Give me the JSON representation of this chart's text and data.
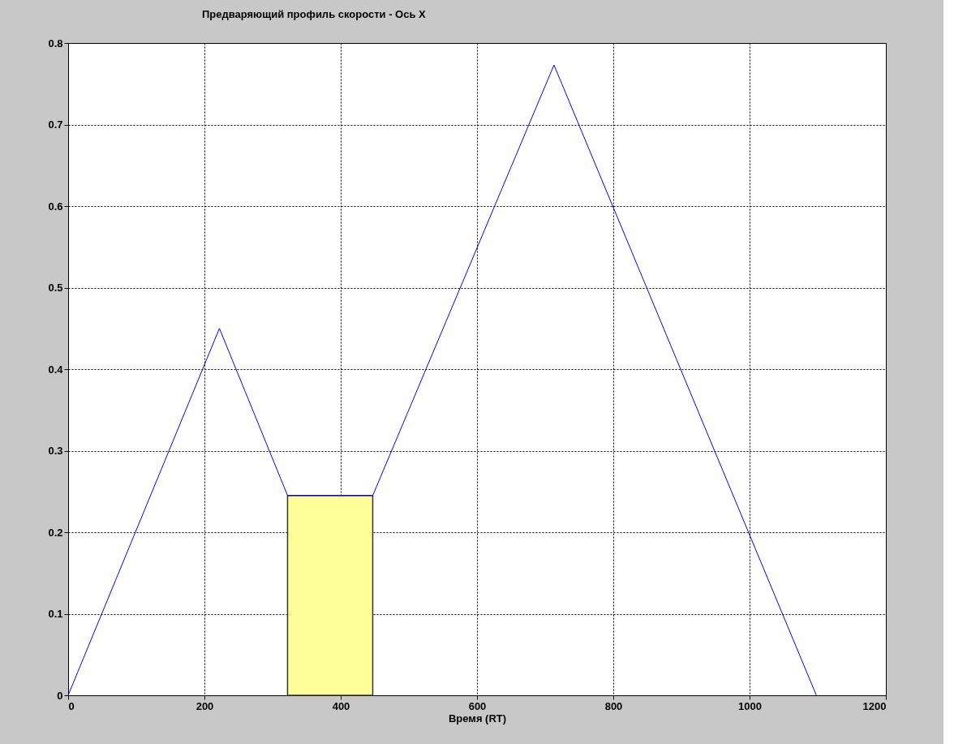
{
  "chart_data": {
    "type": "line",
    "title": "Предваряющий профиль скорости - Ось X",
    "xlabel": "Время (RT)",
    "xlim": [
      0,
      1200
    ],
    "xticks": [
      0,
      200,
      400,
      600,
      800,
      1000,
      1200
    ],
    "ylim": [
      0,
      0.8
    ],
    "yticks": [
      0,
      0.1,
      0.2,
      0.3,
      0.4,
      0.5,
      0.6,
      0.7,
      0.8
    ],
    "grid": true,
    "marker": "none",
    "line_style": "solid",
    "series": [
      {
        "type": "area",
        "color": "#ffff99",
        "x": [
          322,
          447
        ],
        "values": [
          0.245,
          0.245
        ]
      },
      {
        "color": "#0000ff",
        "x": [
          0,
          222,
          322,
          447,
          713,
          1098
        ],
        "values": [
          0,
          0.45,
          0.245,
          0.245,
          0.773,
          0
        ]
      }
    ]
  }
}
